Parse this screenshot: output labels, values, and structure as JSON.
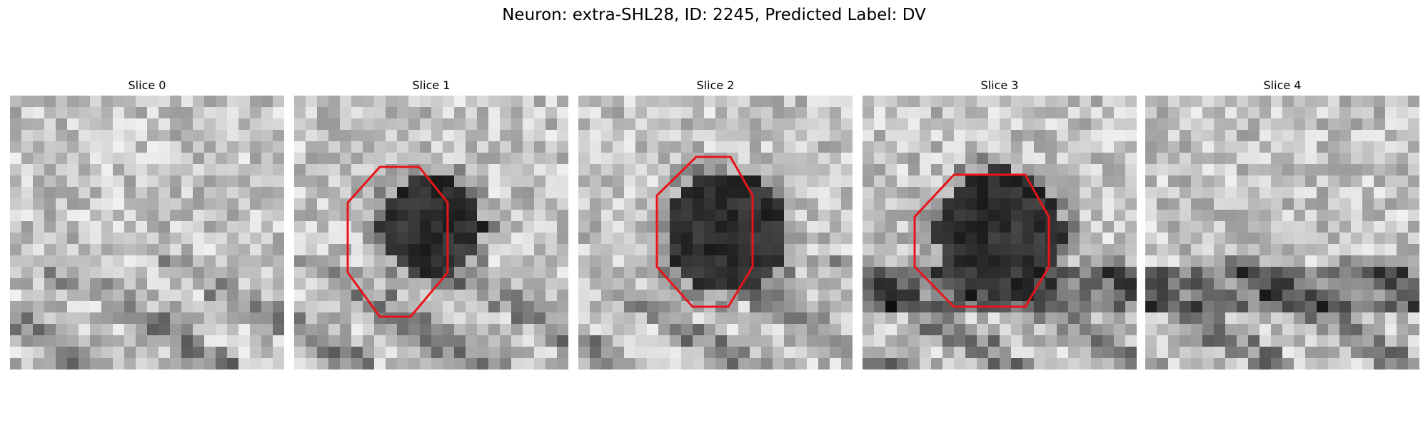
{
  "figure": {
    "title": "Neuron: extra-SHL28, ID: 2245, Predicted Label: DV"
  },
  "panels": [
    {
      "label": "Slice 0",
      "has_outline": false
    },
    {
      "label": "Slice 1",
      "has_outline": true
    },
    {
      "label": "Slice 2",
      "has_outline": true
    },
    {
      "label": "Slice 3",
      "has_outline": true
    },
    {
      "label": "Slice 4",
      "has_outline": false
    }
  ],
  "colors": {
    "outline": "#e8141b",
    "background": "#ffffff"
  }
}
